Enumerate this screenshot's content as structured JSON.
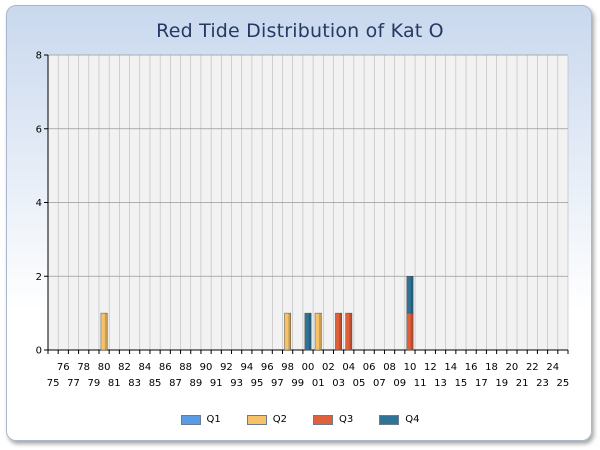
{
  "chart_data": {
    "type": "bar",
    "stacked": true,
    "title": "Red Tide Distribution of Kat O",
    "xlabel": "",
    "ylabel": "",
    "ylim": [
      0,
      8
    ],
    "yticks": [
      0,
      2,
      4,
      6,
      8
    ],
    "grid": true,
    "legend_position": "bottom",
    "categories": [
      "75",
      "76",
      "77",
      "78",
      "79",
      "80",
      "81",
      "82",
      "83",
      "84",
      "85",
      "86",
      "87",
      "88",
      "89",
      "90",
      "91",
      "92",
      "93",
      "94",
      "95",
      "96",
      "97",
      "98",
      "99",
      "00",
      "01",
      "02",
      "03",
      "04",
      "05",
      "06",
      "07",
      "08",
      "09",
      "10",
      "11",
      "12",
      "13",
      "14",
      "15",
      "16",
      "17",
      "18",
      "19",
      "20",
      "21",
      "22",
      "23",
      "24",
      "25"
    ],
    "series": [
      {
        "name": "Q1",
        "color": "#5b9be6",
        "values": [
          0,
          0,
          0,
          0,
          0,
          0,
          0,
          0,
          0,
          0,
          0,
          0,
          0,
          0,
          0,
          0,
          0,
          0,
          0,
          0,
          0,
          0,
          0,
          0,
          0,
          0,
          0,
          0,
          0,
          0,
          0,
          0,
          0,
          0,
          0,
          0,
          0,
          0,
          0,
          0,
          0,
          0,
          0,
          0,
          0,
          0,
          0,
          0,
          0,
          0,
          0
        ]
      },
      {
        "name": "Q2",
        "color": "#f7c267",
        "values": [
          0,
          0,
          0,
          0,
          0,
          1,
          0,
          0,
          0,
          0,
          0,
          0,
          0,
          0,
          0,
          0,
          0,
          0,
          0,
          0,
          0,
          0,
          0,
          1,
          0,
          0,
          1,
          0,
          0,
          0,
          0,
          0,
          0,
          0,
          0,
          0,
          0,
          0,
          0,
          0,
          0,
          0,
          0,
          0,
          0,
          0,
          0,
          0,
          0,
          0,
          0
        ]
      },
      {
        "name": "Q3",
        "color": "#e0603a",
        "values": [
          0,
          0,
          0,
          0,
          0,
          0,
          0,
          0,
          0,
          0,
          0,
          0,
          0,
          0,
          0,
          0,
          0,
          0,
          0,
          0,
          0,
          0,
          0,
          0,
          0,
          0,
          0,
          0,
          1,
          1,
          0,
          0,
          0,
          0,
          0,
          1,
          0,
          0,
          0,
          0,
          0,
          0,
          0,
          0,
          0,
          0,
          0,
          0,
          0,
          0,
          0
        ]
      },
      {
        "name": "Q4",
        "color": "#2f7497",
        "values": [
          0,
          0,
          0,
          0,
          0,
          0,
          0,
          0,
          0,
          0,
          0,
          0,
          0,
          0,
          0,
          0,
          0,
          0,
          0,
          0,
          0,
          0,
          0,
          0,
          0,
          1,
          0,
          0,
          0,
          0,
          0,
          0,
          0,
          0,
          0,
          1,
          0,
          0,
          0,
          0,
          0,
          0,
          0,
          0,
          0,
          0,
          0,
          0,
          0,
          0,
          0
        ]
      }
    ]
  }
}
